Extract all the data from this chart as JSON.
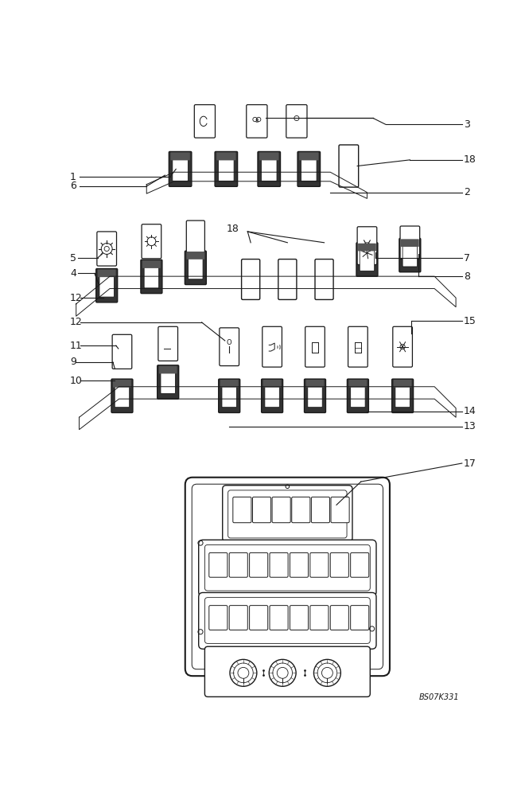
{
  "bg_color": "#ffffff",
  "line_color": "#1a1a1a",
  "figure_width": 6.6,
  "figure_height": 10.0,
  "dpi": 100,
  "watermark": "BS07K331"
}
